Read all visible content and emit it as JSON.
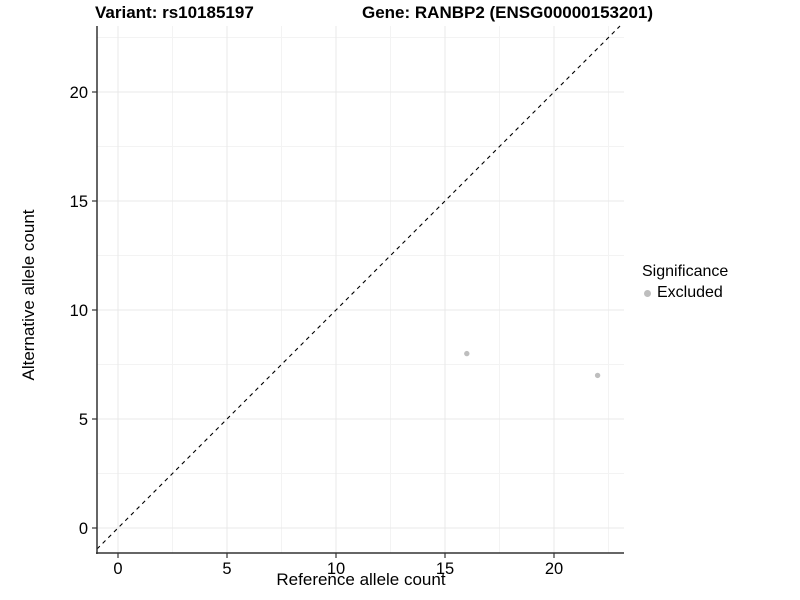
{
  "titles": {
    "variant": "Variant: rs10185197",
    "gene": "Gene: RANBP2 (ENSG00000153201)"
  },
  "legend": {
    "title": "Significance",
    "items": [
      {
        "label": "Excluded",
        "color": "#bebebe"
      }
    ]
  },
  "chart_data": {
    "type": "scatter",
    "title": "Variant: rs10185197   Gene: RANBP2 (ENSG00000153201)",
    "xlabel": "Reference allele count",
    "ylabel": "Alternative allele count",
    "xlim": [
      -1,
      23.2
    ],
    "ylim": [
      -1.2,
      23.0
    ],
    "x_ticks": [
      0,
      5,
      10,
      15,
      20
    ],
    "y_ticks": [
      0,
      5,
      10,
      15,
      20
    ],
    "minor_tick_interval": 2.5,
    "grid": true,
    "legend_position": "right",
    "series": [
      {
        "name": "Excluded",
        "color": "#bebebe",
        "points": [
          {
            "x": 16,
            "y": 8
          },
          {
            "x": 22,
            "y": 7
          }
        ]
      }
    ],
    "reference_line": {
      "type": "identity",
      "equation": "y = x",
      "style": "dashed",
      "color": "#000000"
    },
    "colors": {
      "grid_major": "#e8e8e8",
      "grid_minor": "#f3f3f3",
      "axis_line": "#333333",
      "text": "#000000",
      "background": "#ffffff"
    }
  }
}
